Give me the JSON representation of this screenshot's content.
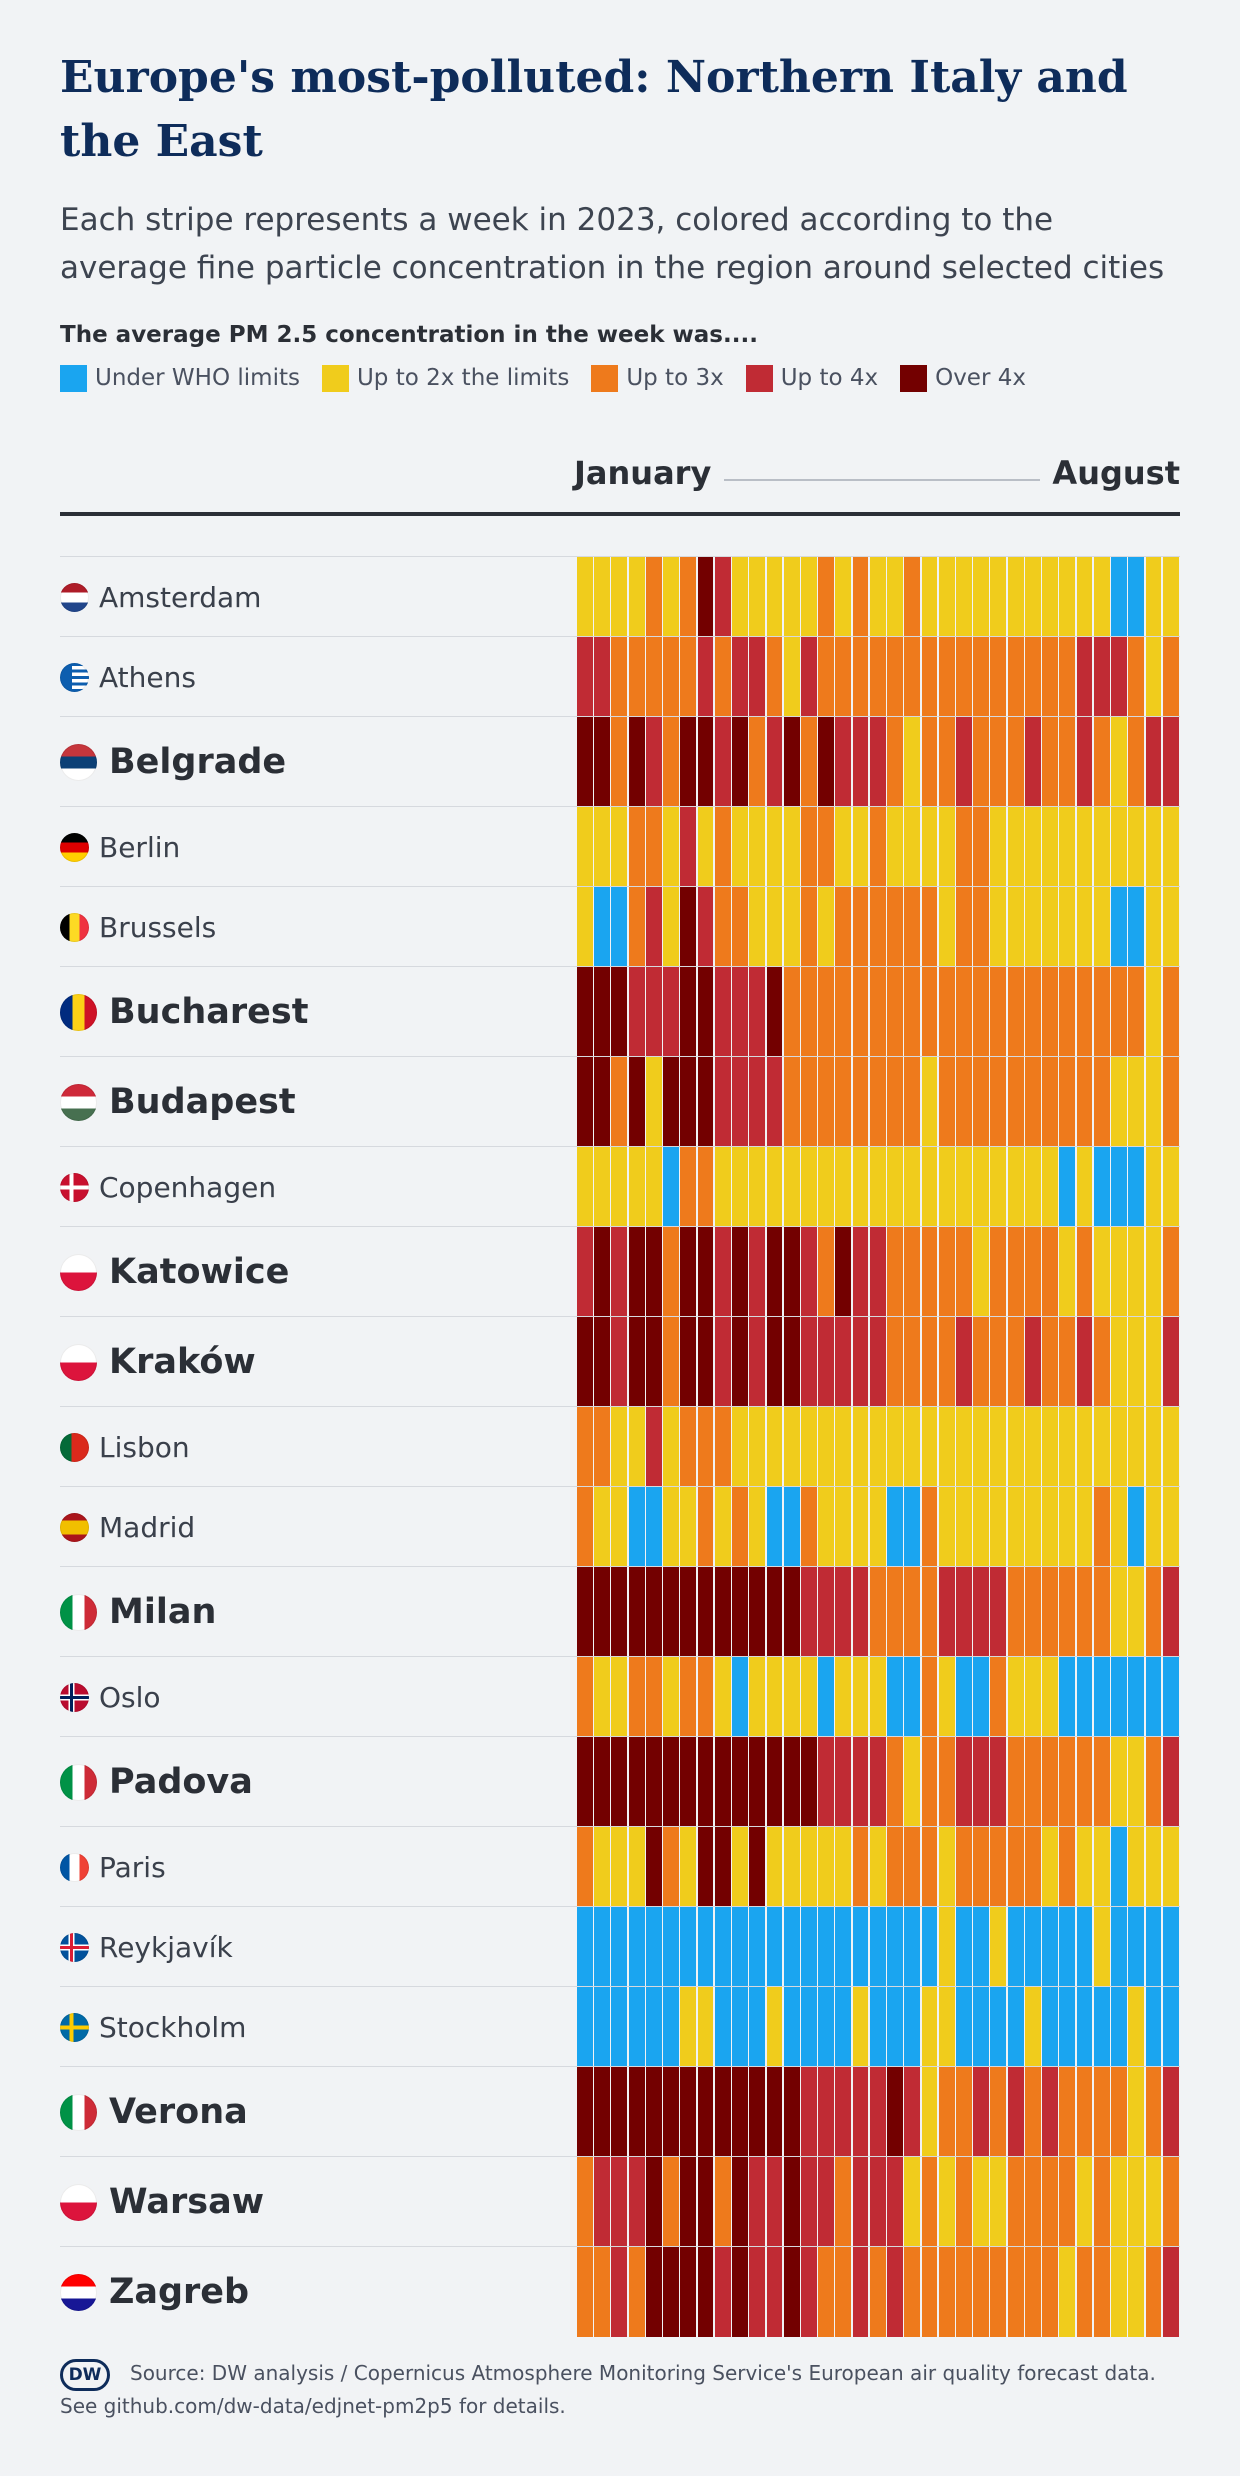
{
  "title": "Europe's most-polluted: Northern Italy and the East",
  "subtitle": "Each stripe represents a week in 2023, colored according to the average fine particle concentration in the region around selected cities",
  "legend": {
    "title": "The average PM 2.5 concentration in the week was....",
    "items": [
      {
        "label": "Under WHO limits",
        "color": "#1aa5f0"
      },
      {
        "label": "Up to 2x the limits",
        "color": "#f0cc1c"
      },
      {
        "label": "Up to 3x",
        "color": "#ee7a1c"
      },
      {
        "label": "Up to 4x",
        "color": "#c02b34"
      },
      {
        "label": "Over 4x",
        "color": "#730000"
      }
    ]
  },
  "axis": {
    "start": "January",
    "end": "August"
  },
  "footer": {
    "logo": "DW",
    "source": "Source: DW analysis / Copernicus Atmosphere Monitoring Service's European air quality forecast data. See github.com/dw-data/edjnet-pm2p5 for details."
  },
  "chart_data": {
    "type": "heatmap",
    "x": "week of 2023 (January to August)",
    "level_scale": [
      "Under WHO limits",
      "Up to 2x the limits",
      "Up to 3x",
      "Up to 4x",
      "Over 4x"
    ],
    "series": [
      {
        "name": "Amsterdam",
        "highlight": false,
        "flag": "netherlands",
        "values": [
          1,
          1,
          1,
          1,
          2,
          1,
          2,
          4,
          3,
          1,
          1,
          1,
          1,
          1,
          2,
          1,
          2,
          1,
          1,
          2,
          1,
          1,
          1,
          1,
          1,
          1,
          1,
          1,
          1,
          1,
          1,
          0,
          0,
          1,
          1
        ]
      },
      {
        "name": "Athens",
        "highlight": false,
        "flag": "greece",
        "values": [
          3,
          3,
          2,
          2,
          2,
          2,
          2,
          3,
          2,
          3,
          3,
          2,
          1,
          3,
          2,
          2,
          2,
          2,
          2,
          2,
          2,
          2,
          2,
          2,
          2,
          2,
          2,
          2,
          2,
          3,
          3,
          3,
          2,
          1,
          2
        ]
      },
      {
        "name": "Belgrade",
        "highlight": true,
        "flag": "serbia",
        "values": [
          4,
          4,
          2,
          4,
          3,
          2,
          4,
          4,
          3,
          4,
          2,
          3,
          4,
          2,
          4,
          3,
          3,
          3,
          2,
          1,
          2,
          2,
          3,
          2,
          2,
          2,
          3,
          2,
          2,
          3,
          2,
          1,
          2,
          3,
          3
        ]
      },
      {
        "name": "Berlin",
        "highlight": false,
        "flag": "germany",
        "values": [
          1,
          1,
          1,
          2,
          2,
          1,
          3,
          1,
          2,
          1,
          1,
          1,
          1,
          2,
          2,
          1,
          1,
          2,
          1,
          1,
          1,
          1,
          2,
          2,
          1,
          1,
          1,
          1,
          1,
          1,
          1,
          1,
          1,
          1,
          1
        ]
      },
      {
        "name": "Brussels",
        "highlight": false,
        "flag": "belgium",
        "values": [
          1,
          0,
          0,
          2,
          3,
          1,
          4,
          3,
          2,
          2,
          1,
          1,
          1,
          2,
          1,
          2,
          2,
          2,
          2,
          2,
          2,
          1,
          2,
          2,
          1,
          1,
          1,
          1,
          1,
          1,
          1,
          0,
          0,
          1,
          1
        ]
      },
      {
        "name": "Bucharest",
        "highlight": true,
        "flag": "romania",
        "values": [
          4,
          4,
          4,
          3,
          3,
          3,
          4,
          4,
          3,
          3,
          3,
          4,
          2,
          2,
          2,
          2,
          2,
          2,
          2,
          2,
          2,
          2,
          2,
          2,
          2,
          2,
          2,
          2,
          2,
          2,
          2,
          2,
          2,
          1,
          2
        ]
      },
      {
        "name": "Budapest",
        "highlight": true,
        "flag": "hungary",
        "values": [
          4,
          4,
          2,
          4,
          1,
          4,
          4,
          4,
          3,
          3,
          3,
          3,
          2,
          2,
          2,
          2,
          2,
          2,
          2,
          2,
          1,
          2,
          2,
          2,
          2,
          2,
          2,
          2,
          2,
          2,
          2,
          1,
          1,
          1,
          2
        ]
      },
      {
        "name": "Copenhagen",
        "highlight": false,
        "flag": "denmark",
        "values": [
          1,
          1,
          1,
          1,
          1,
          0,
          2,
          2,
          1,
          1,
          1,
          1,
          1,
          1,
          1,
          1,
          1,
          1,
          1,
          1,
          1,
          1,
          1,
          1,
          1,
          1,
          1,
          1,
          0,
          1,
          0,
          0,
          0,
          1,
          1
        ]
      },
      {
        "name": "Katowice",
        "highlight": true,
        "flag": "poland",
        "values": [
          3,
          4,
          3,
          4,
          4,
          2,
          4,
          4,
          3,
          4,
          3,
          4,
          4,
          3,
          2,
          4,
          3,
          3,
          2,
          2,
          2,
          2,
          2,
          1,
          2,
          2,
          2,
          2,
          1,
          2,
          1,
          1,
          1,
          1,
          2
        ]
      },
      {
        "name": "Kraków",
        "highlight": true,
        "flag": "poland",
        "values": [
          4,
          4,
          3,
          4,
          4,
          2,
          4,
          4,
          3,
          4,
          3,
          4,
          4,
          3,
          3,
          3,
          3,
          3,
          2,
          2,
          2,
          2,
          3,
          2,
          2,
          2,
          3,
          2,
          2,
          3,
          2,
          1,
          1,
          1,
          3
        ]
      },
      {
        "name": "Lisbon",
        "highlight": false,
        "flag": "portugal",
        "values": [
          2,
          2,
          1,
          1,
          3,
          1,
          2,
          2,
          2,
          1,
          1,
          1,
          1,
          1,
          1,
          1,
          1,
          1,
          1,
          1,
          1,
          1,
          1,
          1,
          1,
          1,
          1,
          1,
          1,
          1,
          1,
          1,
          1,
          1,
          1
        ]
      },
      {
        "name": "Madrid",
        "highlight": false,
        "flag": "spain",
        "values": [
          2,
          1,
          1,
          0,
          0,
          1,
          1,
          2,
          1,
          2,
          1,
          0,
          0,
          2,
          1,
          1,
          1,
          1,
          0,
          0,
          2,
          1,
          1,
          1,
          1,
          1,
          1,
          1,
          1,
          1,
          2,
          1,
          0,
          1,
          1
        ]
      },
      {
        "name": "Milan",
        "highlight": true,
        "flag": "italy",
        "values": [
          4,
          4,
          4,
          4,
          4,
          4,
          4,
          4,
          4,
          4,
          4,
          4,
          4,
          3,
          3,
          3,
          3,
          2,
          2,
          2,
          2,
          3,
          3,
          3,
          3,
          2,
          2,
          2,
          2,
          2,
          2,
          1,
          1,
          2,
          3
        ]
      },
      {
        "name": "Oslo",
        "highlight": false,
        "flag": "norway",
        "values": [
          2,
          1,
          1,
          2,
          2,
          1,
          2,
          2,
          1,
          0,
          1,
          1,
          1,
          1,
          0,
          1,
          1,
          1,
          0,
          0,
          2,
          1,
          0,
          0,
          2,
          1,
          1,
          1,
          0,
          0,
          0,
          0,
          0,
          0,
          0
        ]
      },
      {
        "name": "Padova",
        "highlight": true,
        "flag": "italy",
        "values": [
          4,
          4,
          4,
          4,
          4,
          4,
          4,
          4,
          4,
          4,
          4,
          4,
          4,
          4,
          3,
          3,
          3,
          3,
          2,
          1,
          2,
          2,
          3,
          3,
          3,
          2,
          2,
          2,
          2,
          2,
          2,
          1,
          1,
          2,
          3
        ]
      },
      {
        "name": "Paris",
        "highlight": false,
        "flag": "france",
        "values": [
          2,
          1,
          1,
          1,
          4,
          2,
          1,
          4,
          4,
          1,
          4,
          1,
          1,
          1,
          1,
          1,
          2,
          1,
          2,
          2,
          2,
          1,
          2,
          2,
          2,
          2,
          2,
          1,
          2,
          1,
          1,
          0,
          1,
          1,
          1
        ]
      },
      {
        "name": "Reykjavík",
        "highlight": false,
        "flag": "iceland",
        "values": [
          0,
          0,
          0,
          0,
          0,
          0,
          0,
          0,
          0,
          0,
          0,
          0,
          0,
          0,
          0,
          0,
          0,
          0,
          0,
          0,
          0,
          1,
          0,
          0,
          1,
          0,
          0,
          0,
          0,
          0,
          1,
          0,
          0,
          0,
          0
        ]
      },
      {
        "name": "Stockholm",
        "highlight": false,
        "flag": "sweden",
        "values": [
          0,
          0,
          0,
          0,
          0,
          0,
          1,
          1,
          0,
          0,
          0,
          1,
          0,
          0,
          0,
          0,
          1,
          0,
          0,
          0,
          1,
          1,
          0,
          0,
          0,
          0,
          1,
          0,
          0,
          0,
          0,
          0,
          1,
          0,
          0
        ]
      },
      {
        "name": "Verona",
        "highlight": true,
        "flag": "italy",
        "values": [
          4,
          4,
          4,
          4,
          4,
          4,
          4,
          4,
          4,
          4,
          4,
          4,
          4,
          3,
          3,
          3,
          3,
          3,
          4,
          3,
          1,
          2,
          2,
          3,
          2,
          3,
          2,
          3,
          2,
          2,
          2,
          2,
          1,
          2,
          3
        ]
      },
      {
        "name": "Warsaw",
        "highlight": true,
        "flag": "poland",
        "values": [
          2,
          3,
          3,
          3,
          4,
          2,
          4,
          4,
          2,
          4,
          3,
          3,
          4,
          3,
          3,
          2,
          3,
          3,
          3,
          1,
          2,
          1,
          2,
          1,
          1,
          2,
          2,
          2,
          2,
          1,
          2,
          1,
          1,
          1,
          2
        ]
      },
      {
        "name": "Zagreb",
        "highlight": true,
        "flag": "croatia",
        "values": [
          2,
          2,
          3,
          2,
          4,
          4,
          4,
          4,
          3,
          4,
          3,
          3,
          4,
          3,
          2,
          2,
          3,
          2,
          3,
          2,
          2,
          2,
          2,
          2,
          2,
          2,
          2,
          2,
          1,
          2,
          2,
          1,
          1,
          2,
          3
        ]
      }
    ]
  }
}
